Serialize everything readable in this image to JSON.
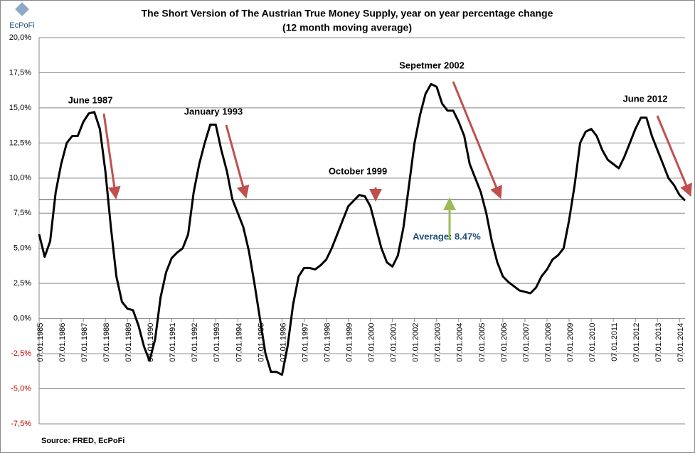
{
  "logo_text": "EcPoFi",
  "chart_data": {
    "type": "line",
    "title": "The Short Version of The Austrian True Money Supply, year on year percentage change",
    "subtitle": "(12 month moving average)",
    "source": "Source: FRED,  EcPoFi",
    "x": [
      "07.01.1985",
      "10.01.1985",
      "01.01.1986",
      "04.01.1986",
      "07.01.1986",
      "10.01.1986",
      "01.01.1987",
      "04.01.1987",
      "07.01.1987",
      "10.01.1987",
      "01.01.1988",
      "04.01.1988",
      "07.01.1988",
      "10.01.1988",
      "01.01.1989",
      "04.01.1989",
      "07.01.1989",
      "10.01.1989",
      "01.01.1990",
      "04.01.1990",
      "07.01.1990",
      "10.01.1990",
      "01.01.1991",
      "04.01.1991",
      "07.01.1991",
      "10.01.1991",
      "01.01.1992",
      "04.01.1992",
      "07.01.1992",
      "10.01.1992",
      "01.01.1993",
      "04.01.1993",
      "07.01.1993",
      "10.01.1993",
      "01.01.1994",
      "04.01.1994",
      "07.01.1994",
      "10.01.1994",
      "01.01.1995",
      "04.01.1995",
      "07.01.1995",
      "10.01.1995",
      "01.01.1996",
      "04.01.1996",
      "07.01.1996",
      "10.01.1996",
      "01.01.1997",
      "04.01.1997",
      "07.01.1997",
      "10.01.1997",
      "01.01.1998",
      "04.01.1998",
      "07.01.1998",
      "10.01.1998",
      "01.01.1999",
      "04.01.1999",
      "07.01.1999",
      "10.01.1999",
      "01.01.2000",
      "04.01.2000",
      "07.01.2000",
      "10.01.2000",
      "01.01.2001",
      "04.01.2001",
      "07.01.2001",
      "10.01.2001",
      "01.01.2002",
      "04.01.2002",
      "07.01.2002",
      "10.01.2002",
      "01.01.2003",
      "04.01.2003",
      "07.01.2003",
      "10.01.2003",
      "01.01.2004",
      "04.01.2004",
      "07.01.2004",
      "10.01.2004",
      "01.01.2005",
      "04.01.2005",
      "07.01.2005",
      "10.01.2005",
      "01.01.2006",
      "04.01.2006",
      "07.01.2006",
      "10.01.2006",
      "01.01.2007",
      "04.01.2007",
      "07.01.2007",
      "10.01.2007",
      "01.01.2008",
      "04.01.2008",
      "07.01.2008",
      "10.01.2008",
      "01.01.2009",
      "04.01.2009",
      "07.01.2009",
      "10.01.2009",
      "01.01.2010",
      "04.01.2010",
      "07.01.2010",
      "10.01.2010",
      "01.01.2011",
      "04.01.2011",
      "07.01.2011",
      "10.01.2011",
      "01.01.2012",
      "04.01.2012",
      "07.01.2012",
      "10.01.2012",
      "01.01.2013",
      "04.01.2013",
      "07.01.2013",
      "10.01.2013",
      "01.01.2014",
      "04.01.2014",
      "07.01.2014",
      "10.01.2014"
    ],
    "series": [
      {
        "color": "#000000",
        "values": [
          6.0,
          4.4,
          5.5,
          9.0,
          11.0,
          12.5,
          13.0,
          13.0,
          14.0,
          14.6,
          14.7,
          13.5,
          10.5,
          6.5,
          3.0,
          1.2,
          0.7,
          0.6,
          -0.5,
          -2.0,
          -3.0,
          -1.5,
          1.5,
          3.3,
          4.3,
          4.7,
          5.0,
          6.0,
          9.0,
          11.0,
          12.5,
          13.8,
          13.8,
          12.0,
          10.5,
          8.5,
          7.5,
          6.5,
          4.8,
          2.5,
          0,
          -2.5,
          -3.8,
          -3.8,
          -4.0,
          -2.0,
          1.0,
          3.0,
          3.6,
          3.6,
          3.5,
          3.8,
          4.2,
          5.0,
          6.0,
          7.0,
          8.0,
          8.4,
          8.8,
          8.7,
          8.0,
          6.5,
          5.0,
          4.0,
          3.7,
          4.5,
          6.5,
          9.5,
          12.5,
          14.5,
          16.0,
          16.7,
          16.5,
          15.3,
          14.8,
          14.8,
          14.0,
          13.0,
          11.0,
          10.0,
          9.0,
          7.5,
          5.5,
          4.0,
          3.0,
          2.6,
          2.3,
          2.0,
          1.9,
          1.8,
          2.2,
          3.0,
          3.5,
          4.2,
          4.5,
          5.0,
          7.0,
          9.5,
          12.5,
          13.3,
          13.5,
          13.0,
          12.0,
          11.3,
          11.0,
          10.7,
          11.5,
          12.5,
          13.5,
          14.3,
          14.3,
          13.0,
          12.0,
          11.0,
          10.0,
          9.5,
          8.8,
          8.4
        ]
      }
    ],
    "average": 8.47,
    "average_label": "Average: 8.47%",
    "annotations": [
      "June 1987",
      "January 1993",
      "October 1999",
      "Sepetmer 2002",
      "June 2012"
    ],
    "xlim": [
      "07.01.1985",
      "10.01.2014"
    ],
    "xticks": [
      "07.01.1985",
      "07.01.1986",
      "07.01.1987",
      "07.01.1988",
      "07.01.1989",
      "07.01.1990",
      "07.01.1991",
      "07.01.1992",
      "07.01.1993",
      "07.01.1994",
      "07.01.1995",
      "07.01.1996",
      "07.01.1997",
      "07.01.1998",
      "07.01.1999",
      "07.01.2000",
      "07.01.2001",
      "07.01.2002",
      "07.01.2003",
      "07.01.2004",
      "07.01.2005",
      "07.01.2006",
      "07.01.2007",
      "07.01.2008",
      "07.01.2009",
      "07.01.2010",
      "07.01.2011",
      "07.01.2012",
      "07.01.2013",
      "07.01.2014"
    ],
    "ylim": [
      -7.5,
      20
    ],
    "yticks": [
      {
        "value": -7.5,
        "label": "-7,5%"
      },
      {
        "value": -5,
        "label": "-5,0%"
      },
      {
        "value": -2.5,
        "label": "-2,5%"
      },
      {
        "value": 0,
        "label": "0,0%"
      },
      {
        "value": 2.5,
        "label": "2,5%"
      },
      {
        "value": 5,
        "label": "5,0%"
      },
      {
        "value": 7.5,
        "label": "7,5%"
      },
      {
        "value": 10,
        "label": "10,0%"
      },
      {
        "value": 12.5,
        "label": "12,5%"
      },
      {
        "value": 15,
        "label": "15,0%"
      },
      {
        "value": 17.5,
        "label": "17,5%"
      },
      {
        "value": 20,
        "label": "20,0%"
      }
    ],
    "grid": true,
    "negative_tick_color": "#c00000"
  }
}
